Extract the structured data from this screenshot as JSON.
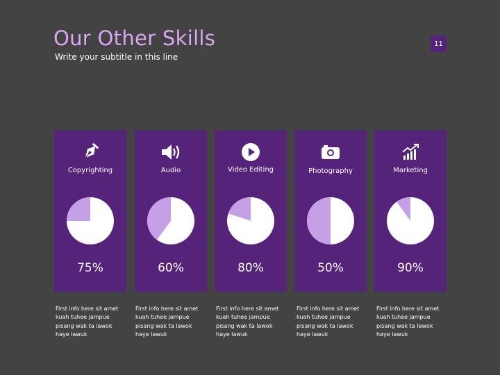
{
  "slide": {
    "title": "Our Other Skills",
    "subtitle": "Write your subtitle in this line",
    "page_number": "11"
  },
  "colors": {
    "background": "#434343",
    "card": "#55237a",
    "title": "#d9a6f2",
    "pie_filled": "#c6a0e6",
    "pie_empty": "#ffffff"
  },
  "skills": [
    {
      "label": "Copyrighting",
      "icon": "pen-nib-icon",
      "percent_label": "75%",
      "value": 75,
      "description": [
        "First info here sit amet",
        "kuah tuhee jampue",
        "pisang wak ta lawok",
        "haye lawuk"
      ]
    },
    {
      "label": "Audio",
      "icon": "speaker-icon",
      "percent_label": "60%",
      "value": 60,
      "description": [
        "First info here sit amet",
        "kuah tuhee jampue",
        "pisang wak ta lawok",
        "haye lawuk"
      ]
    },
    {
      "label": "Video Editing",
      "icon": "play-circle-icon",
      "percent_label": "80%",
      "value": 80,
      "description": [
        "First info here sit amet",
        "kuah tuhee jampue",
        "pisang wak ta lawok",
        "haye lawuk"
      ]
    },
    {
      "label": "Photography",
      "icon": "camera-icon",
      "percent_label": "50%",
      "value": 50,
      "description": [
        "First info here sit amet",
        "kuah tuhee jampue",
        "pisang wak ta lawok",
        "haye lawuk"
      ]
    },
    {
      "label": "Marketing",
      "icon": "growth-chart-icon",
      "percent_label": "90%",
      "value": 90,
      "description": [
        "First info here sit amet",
        "kuah tuhee jampue",
        "pisang wak ta lawok",
        "haye lawuk"
      ]
    }
  ]
}
